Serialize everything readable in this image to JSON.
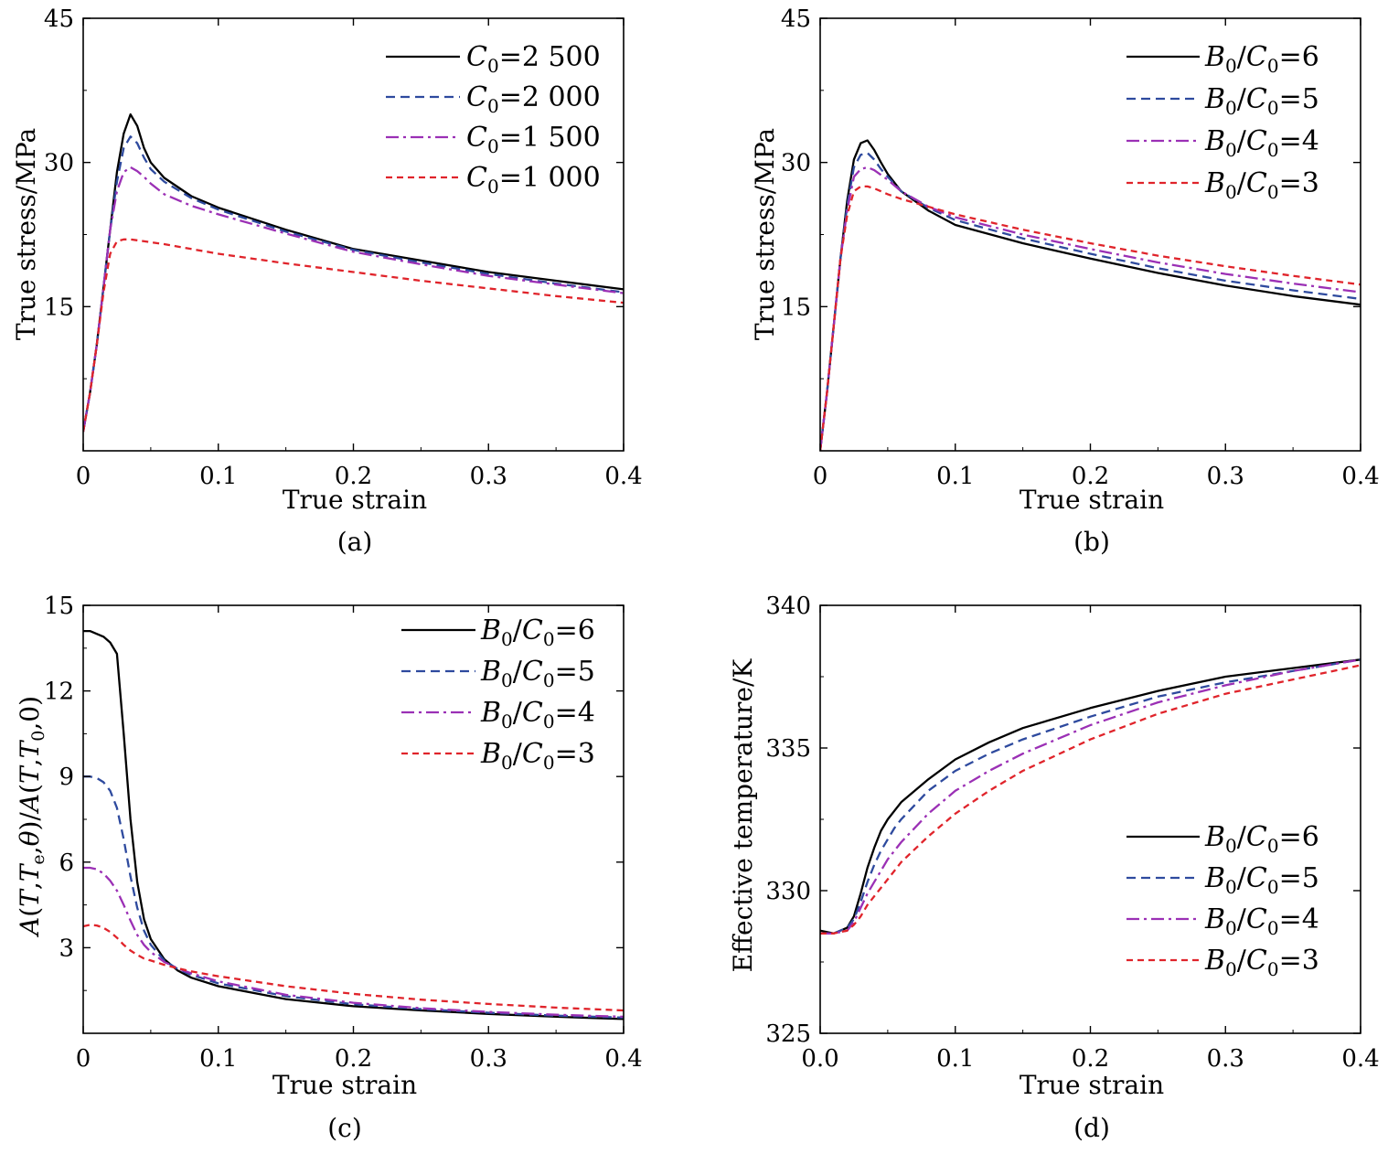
{
  "chart_data": [
    {
      "id": "a",
      "type": "line",
      "caption": "(a)",
      "xlabel": "True strain",
      "ylabel": "True stress/MPa",
      "xlim": [
        0,
        0.4
      ],
      "ylim": [
        0,
        45
      ],
      "xticks": [
        0,
        0.1,
        0.2,
        0.3,
        0.4
      ],
      "xtick_labels": [
        "0",
        "0.1",
        "0.2",
        "0.3",
        "0.4"
      ],
      "yticks": [
        15,
        30,
        45
      ],
      "ytick_labels": [
        "15",
        "30",
        "45"
      ],
      "legend_position": "top-right",
      "series": [
        {
          "name": "C0=2 500",
          "label_sym": "C",
          "label_sub": "0",
          "label_val": "2 500",
          "color": "#000000",
          "dash": "solid",
          "x": [
            0,
            0.005,
            0.01,
            0.015,
            0.02,
            0.025,
            0.03,
            0.035,
            0.04,
            0.045,
            0.05,
            0.06,
            0.08,
            0.1,
            0.15,
            0.2,
            0.25,
            0.3,
            0.35,
            0.4
          ],
          "y": [
            2,
            6,
            11,
            17,
            23,
            29,
            33,
            35,
            33.8,
            31.5,
            30,
            28.4,
            26.5,
            25.3,
            23,
            21,
            19.8,
            18.6,
            17.7,
            16.8
          ]
        },
        {
          "name": "C0=2 000",
          "label_sym": "C",
          "label_sub": "0",
          "label_val": "2 000",
          "color": "#2e4a9e",
          "dash": "10,6",
          "x": [
            0,
            0.005,
            0.01,
            0.015,
            0.02,
            0.025,
            0.03,
            0.035,
            0.04,
            0.045,
            0.05,
            0.06,
            0.08,
            0.1,
            0.15,
            0.2,
            0.25,
            0.3,
            0.35,
            0.4
          ],
          "y": [
            2,
            6,
            11,
            17,
            23,
            28,
            31.5,
            32.7,
            32,
            30.5,
            29.3,
            28,
            26.3,
            25.1,
            22.8,
            20.9,
            19.6,
            18.4,
            17.4,
            16.5
          ]
        },
        {
          "name": "C0=1 500",
          "label_sym": "C",
          "label_sub": "0",
          "label_val": "1 500",
          "color": "#9b30b5",
          "dash": "14,5,3,5",
          "x": [
            0,
            0.005,
            0.01,
            0.015,
            0.02,
            0.025,
            0.03,
            0.035,
            0.04,
            0.045,
            0.05,
            0.06,
            0.08,
            0.1,
            0.15,
            0.2,
            0.25,
            0.3,
            0.35,
            0.4
          ],
          "y": [
            2,
            6,
            11,
            17,
            23,
            27,
            29,
            29.5,
            29.1,
            28.5,
            27.8,
            26.7,
            25.5,
            24.6,
            22.6,
            20.7,
            19.4,
            18.2,
            17.3,
            16.4
          ]
        },
        {
          "name": "C0=1 000",
          "label_sym": "C",
          "label_sub": "0",
          "label_val": "1 000",
          "color": "#e0242b",
          "dash": "7,5",
          "x": [
            0,
            0.005,
            0.01,
            0.015,
            0.02,
            0.025,
            0.03,
            0.035,
            0.04,
            0.05,
            0.06,
            0.08,
            0.1,
            0.15,
            0.2,
            0.25,
            0.3,
            0.35,
            0.4
          ],
          "y": [
            2,
            6,
            11,
            16.5,
            20.5,
            21.8,
            22,
            22,
            21.9,
            21.7,
            21.5,
            21,
            20.5,
            19.5,
            18.6,
            17.7,
            16.9,
            16.1,
            15.4
          ]
        }
      ]
    },
    {
      "id": "b",
      "type": "line",
      "caption": "(b)",
      "xlabel": "True strain",
      "ylabel": "True stress/MPa",
      "xlim": [
        0,
        0.4
      ],
      "ylim": [
        0,
        45
      ],
      "xticks": [
        0,
        0.1,
        0.2,
        0.3,
        0.4
      ],
      "xtick_labels": [
        "0",
        "0.1",
        "0.2",
        "0.3",
        "0.4"
      ],
      "yticks": [
        15,
        30,
        45
      ],
      "ytick_labels": [
        "15",
        "30",
        "45"
      ],
      "legend_position": "top-right",
      "series": [
        {
          "name": "B0/C0=6",
          "label_val": "6",
          "color": "#000000",
          "dash": "solid",
          "x": [
            0,
            0.005,
            0.01,
            0.015,
            0.02,
            0.025,
            0.03,
            0.035,
            0.04,
            0.045,
            0.05,
            0.06,
            0.08,
            0.1,
            0.15,
            0.2,
            0.25,
            0.3,
            0.35,
            0.4
          ],
          "y": [
            0,
            6,
            13,
            20,
            26,
            30.3,
            32,
            32.3,
            31.3,
            30,
            28.8,
            27,
            25,
            23.5,
            21.6,
            20,
            18.5,
            17.2,
            16.1,
            15.2
          ]
        },
        {
          "name": "B0/C0=5",
          "label_val": "5",
          "color": "#2e4a9e",
          "dash": "10,6",
          "x": [
            0,
            0.005,
            0.01,
            0.015,
            0.02,
            0.025,
            0.03,
            0.035,
            0.04,
            0.045,
            0.05,
            0.06,
            0.08,
            0.1,
            0.15,
            0.2,
            0.25,
            0.3,
            0.35,
            0.4
          ],
          "y": [
            0,
            6,
            13,
            20,
            25.5,
            29.5,
            30.8,
            31,
            30.3,
            29.3,
            28.5,
            27,
            25.3,
            24,
            22.1,
            20.5,
            19,
            17.7,
            16.7,
            15.8
          ]
        },
        {
          "name": "B0/C0=4",
          "label_val": "4",
          "color": "#9b30b5",
          "dash": "14,5,3,5",
          "x": [
            0,
            0.005,
            0.01,
            0.015,
            0.02,
            0.025,
            0.03,
            0.035,
            0.04,
            0.045,
            0.05,
            0.06,
            0.08,
            0.1,
            0.15,
            0.2,
            0.25,
            0.3,
            0.35,
            0.4
          ],
          "y": [
            0,
            6,
            13,
            20,
            25,
            28.5,
            29.3,
            29.5,
            29.2,
            28.7,
            28.2,
            27,
            25.4,
            24.3,
            22.5,
            21,
            19.6,
            18.4,
            17.4,
            16.5
          ]
        },
        {
          "name": "B0/C0=3",
          "label_val": "3",
          "color": "#e0242b",
          "dash": "7,5",
          "x": [
            0,
            0.005,
            0.01,
            0.015,
            0.02,
            0.025,
            0.03,
            0.035,
            0.04,
            0.045,
            0.05,
            0.06,
            0.08,
            0.1,
            0.15,
            0.2,
            0.25,
            0.3,
            0.35,
            0.4
          ],
          "y": [
            0,
            6,
            13,
            20,
            24.5,
            27,
            27.5,
            27.5,
            27.3,
            27,
            26.7,
            26.2,
            25.4,
            24.6,
            23,
            21.6,
            20.3,
            19.2,
            18.2,
            17.3
          ]
        }
      ]
    },
    {
      "id": "c",
      "type": "line",
      "caption": "(c)",
      "xlabel": "True strain",
      "ylabel": "A(T,T_e,θ)/A(T,T_0,0)",
      "ylabel_parts": {
        "a": "A",
        "args1": "(",
        "t1": "T",
        "comma1": ",",
        "t2": "T",
        "sub_e": "e",
        "comma2": ",",
        "theta": "θ",
        "close1": ")",
        "slash": "/",
        "a2": "A",
        "args2": "(",
        "t3": "T",
        "comma3": ",",
        "t4": "T",
        "sub_0": "0",
        "tail": ",0)"
      },
      "xlim": [
        0,
        0.4
      ],
      "ylim": [
        0,
        15
      ],
      "xticks": [
        0,
        0.1,
        0.2,
        0.3,
        0.4
      ],
      "xtick_labels": [
        "0",
        "0.1",
        "0.2",
        "0.3",
        "0.4"
      ],
      "yticks": [
        3,
        6,
        9,
        12,
        15
      ],
      "ytick_labels": [
        "3",
        "6",
        "9",
        "12",
        "15"
      ],
      "legend_position": "top-right",
      "series": [
        {
          "name": "B0/C0=6",
          "label_val": "6",
          "color": "#000000",
          "dash": "solid",
          "x": [
            0,
            0.005,
            0.01,
            0.015,
            0.02,
            0.025,
            0.03,
            0.035,
            0.04,
            0.045,
            0.05,
            0.06,
            0.07,
            0.08,
            0.1,
            0.15,
            0.2,
            0.25,
            0.3,
            0.35,
            0.4
          ],
          "y": [
            14.1,
            14.1,
            14,
            13.9,
            13.7,
            13.3,
            10.5,
            7.5,
            5.3,
            4,
            3.3,
            2.6,
            2.2,
            1.95,
            1.65,
            1.2,
            0.95,
            0.8,
            0.68,
            0.58,
            0.5
          ]
        },
        {
          "name": "B0/C0=5",
          "label_val": "5",
          "color": "#2e4a9e",
          "dash": "10,6",
          "x": [
            0,
            0.005,
            0.01,
            0.015,
            0.02,
            0.025,
            0.03,
            0.035,
            0.04,
            0.045,
            0.05,
            0.06,
            0.07,
            0.08,
            0.1,
            0.15,
            0.2,
            0.25,
            0.3,
            0.35,
            0.4
          ],
          "y": [
            9,
            9,
            8.95,
            8.8,
            8.5,
            7.9,
            6.8,
            5.5,
            4.4,
            3.6,
            3.1,
            2.55,
            2.25,
            2.05,
            1.75,
            1.3,
            1.02,
            0.85,
            0.72,
            0.62,
            0.55
          ]
        },
        {
          "name": "B0/C0=4",
          "label_val": "4",
          "color": "#9b30b5",
          "dash": "14,5,3,5",
          "x": [
            0,
            0.005,
            0.01,
            0.015,
            0.02,
            0.025,
            0.03,
            0.035,
            0.04,
            0.045,
            0.05,
            0.06,
            0.07,
            0.08,
            0.1,
            0.15,
            0.2,
            0.25,
            0.3,
            0.35,
            0.4
          ],
          "y": [
            5.8,
            5.8,
            5.75,
            5.6,
            5.35,
            5,
            4.5,
            3.95,
            3.45,
            3.1,
            2.85,
            2.5,
            2.28,
            2.1,
            1.82,
            1.35,
            1.07,
            0.88,
            0.75,
            0.65,
            0.58
          ]
        },
        {
          "name": "B0/C0=3",
          "label_val": "3",
          "color": "#e0242b",
          "dash": "7,5",
          "x": [
            0,
            0.005,
            0.01,
            0.015,
            0.02,
            0.025,
            0.03,
            0.035,
            0.04,
            0.045,
            0.05,
            0.06,
            0.07,
            0.08,
            0.1,
            0.15,
            0.2,
            0.25,
            0.3,
            0.35,
            0.4
          ],
          "y": [
            3.75,
            3.8,
            3.78,
            3.7,
            3.55,
            3.35,
            3.1,
            2.9,
            2.75,
            2.62,
            2.55,
            2.4,
            2.28,
            2.17,
            2.0,
            1.65,
            1.38,
            1.18,
            1.03,
            0.9,
            0.8
          ]
        }
      ]
    },
    {
      "id": "d",
      "type": "line",
      "caption": "(d)",
      "xlabel": "True strain",
      "ylabel": "Effective temperature/K",
      "xlim": [
        0,
        0.4
      ],
      "ylim": [
        325,
        340
      ],
      "xticks": [
        0,
        0.1,
        0.2,
        0.3,
        0.4
      ],
      "xtick_labels": [
        "0.0",
        "0.1",
        "0.2",
        "0.3",
        "0.4"
      ],
      "yticks": [
        325,
        330,
        335,
        340
      ],
      "ytick_labels": [
        "325",
        "330",
        "335",
        "340"
      ],
      "legend_position": "right",
      "series": [
        {
          "name": "B0/C0=6",
          "label_val": "6",
          "color": "#000000",
          "dash": "solid",
          "x": [
            0,
            0.01,
            0.02,
            0.025,
            0.03,
            0.035,
            0.04,
            0.045,
            0.05,
            0.055,
            0.06,
            0.08,
            0.1,
            0.125,
            0.15,
            0.2,
            0.25,
            0.3,
            0.35,
            0.4
          ],
          "y": [
            328.6,
            328.5,
            328.7,
            329.1,
            329.9,
            330.8,
            331.5,
            332.1,
            332.5,
            332.8,
            333.1,
            333.9,
            334.6,
            335.2,
            335.7,
            336.4,
            337,
            337.5,
            337.8,
            338.1
          ]
        },
        {
          "name": "B0/C0=5",
          "label_val": "5",
          "color": "#2e4a9e",
          "dash": "10,6",
          "x": [
            0,
            0.01,
            0.02,
            0.025,
            0.03,
            0.035,
            0.04,
            0.045,
            0.05,
            0.055,
            0.06,
            0.08,
            0.1,
            0.125,
            0.15,
            0.2,
            0.25,
            0.3,
            0.35,
            0.4
          ],
          "y": [
            328.5,
            328.5,
            328.7,
            329.0,
            329.6,
            330.3,
            330.9,
            331.4,
            331.8,
            332.2,
            332.5,
            333.5,
            334.2,
            334.8,
            335.3,
            336.1,
            336.8,
            337.3,
            337.7,
            338.1
          ]
        },
        {
          "name": "B0/C0=4",
          "label_val": "4",
          "color": "#9b30b5",
          "dash": "14,5,3,5",
          "x": [
            0,
            0.01,
            0.02,
            0.025,
            0.03,
            0.035,
            0.04,
            0.045,
            0.05,
            0.055,
            0.06,
            0.08,
            0.1,
            0.125,
            0.15,
            0.2,
            0.25,
            0.3,
            0.35,
            0.4
          ],
          "y": [
            328.5,
            328.5,
            328.6,
            328.9,
            329.4,
            329.9,
            330.3,
            330.7,
            331.1,
            331.4,
            331.7,
            332.7,
            333.5,
            334.2,
            334.8,
            335.8,
            336.6,
            337.2,
            337.7,
            338.1
          ]
        },
        {
          "name": "B0/C0=3",
          "label_val": "3",
          "color": "#e0242b",
          "dash": "7,5",
          "x": [
            0,
            0.01,
            0.02,
            0.025,
            0.03,
            0.035,
            0.04,
            0.045,
            0.05,
            0.055,
            0.06,
            0.08,
            0.1,
            0.125,
            0.15,
            0.2,
            0.25,
            0.3,
            0.35,
            0.4
          ],
          "y": [
            328.5,
            328.5,
            328.6,
            328.8,
            329.1,
            329.5,
            329.8,
            330.1,
            330.4,
            330.7,
            331.0,
            331.9,
            332.7,
            333.5,
            334.2,
            335.3,
            336.2,
            336.9,
            337.4,
            337.9
          ]
        }
      ]
    }
  ]
}
